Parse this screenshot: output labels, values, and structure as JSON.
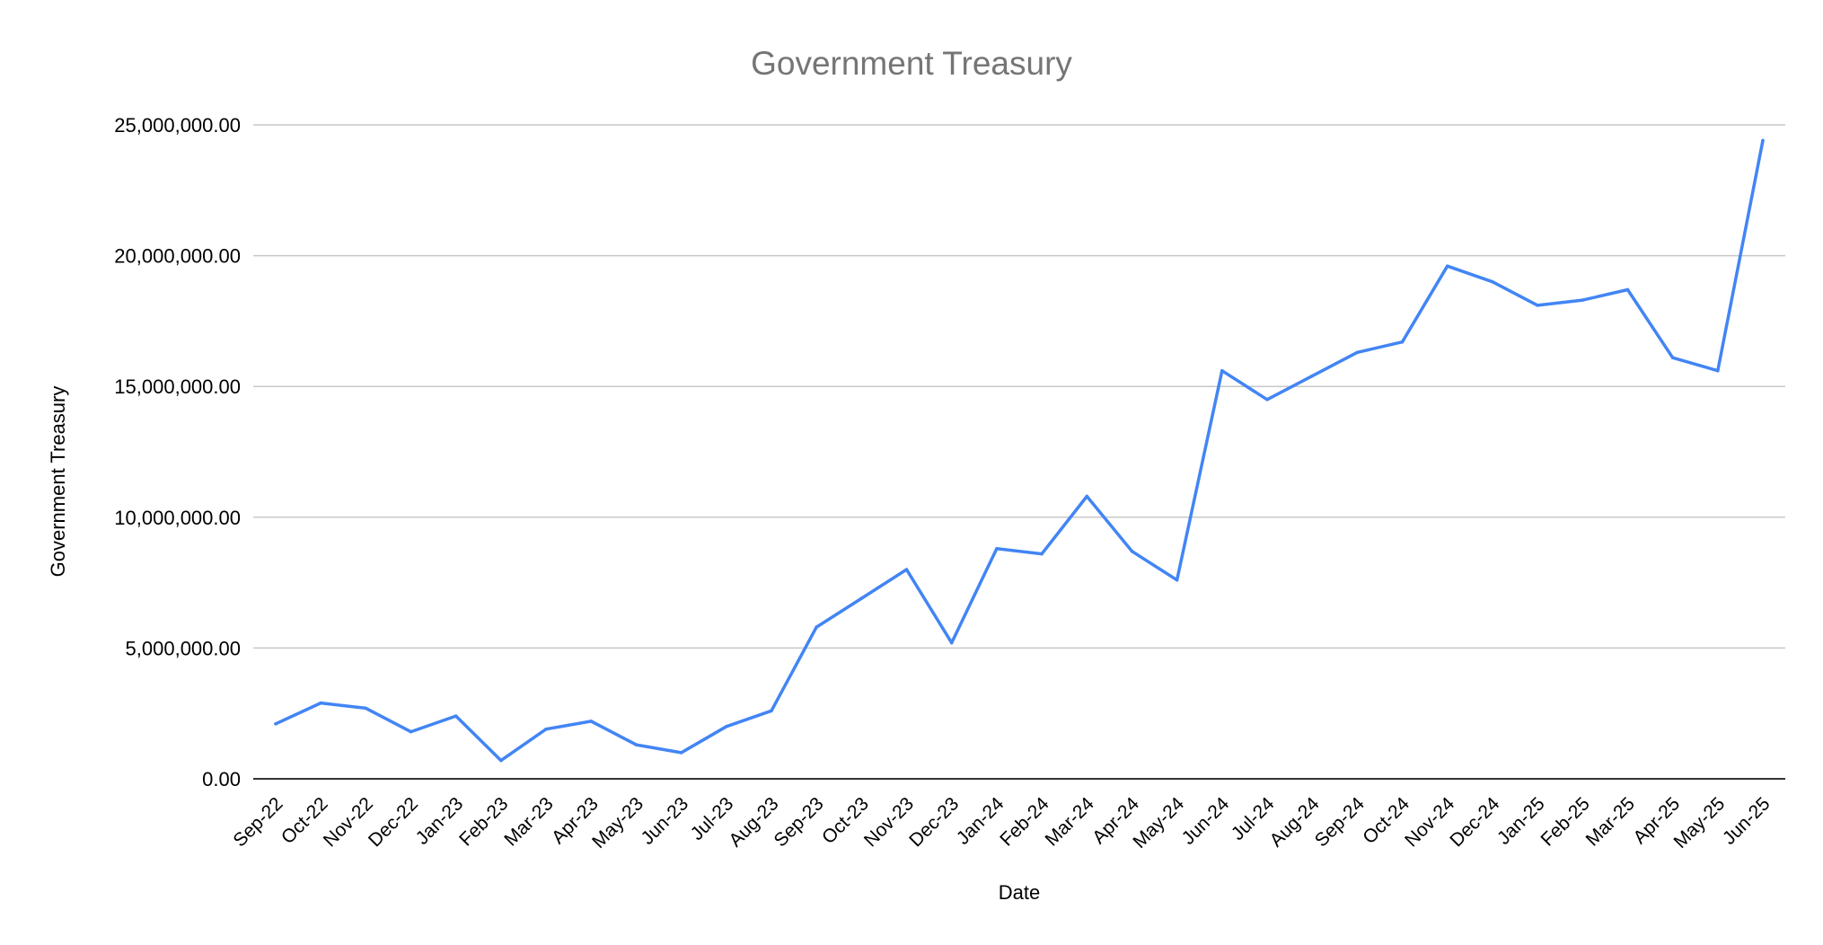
{
  "chart_data": {
    "type": "line",
    "title": "Government Treasury",
    "xlabel": "Date",
    "ylabel": "Government Treasury",
    "ylim": [
      0,
      25000000
    ],
    "yticks": [
      {
        "value": 0,
        "label": "0.00"
      },
      {
        "value": 5000000,
        "label": "5,000,000.00"
      },
      {
        "value": 10000000,
        "label": "10,000,000.00"
      },
      {
        "value": 15000000,
        "label": "15,000,000.00"
      },
      {
        "value": 20000000,
        "label": "20,000,000.00"
      },
      {
        "value": 25000000,
        "label": "25,000,000.00"
      }
    ],
    "grid": true,
    "legend": "none",
    "categories": [
      "Sep-22",
      "Oct-22",
      "Nov-22",
      "Dec-22",
      "Jan-23",
      "Feb-23",
      "Mar-23",
      "Apr-23",
      "May-23",
      "Jun-23",
      "Jul-23",
      "Aug-23",
      "Sep-23",
      "Oct-23",
      "Nov-23",
      "Dec-23",
      "Jan-24",
      "Feb-24",
      "Mar-24",
      "Apr-24",
      "May-24",
      "Jun-24",
      "Jul-24",
      "Aug-24",
      "Sep-24",
      "Oct-24",
      "Nov-24",
      "Dec-24",
      "Jan-25",
      "Feb-25",
      "Mar-25",
      "Apr-25",
      "May-25",
      "Jun-25"
    ],
    "series": [
      {
        "color": "#4285f4",
        "values": [
          2100000,
          2900000,
          2700000,
          1800000,
          2400000,
          700000,
          1900000,
          2200000,
          1300000,
          1000000,
          2000000,
          2600000,
          5800000,
          6900000,
          8000000,
          5200000,
          8800000,
          8600000,
          10800000,
          8700000,
          7600000,
          15600000,
          14500000,
          15400000,
          16300000,
          16700000,
          19600000,
          19000000,
          18100000,
          18300000,
          18700000,
          16100000,
          15600000,
          24400000
        ]
      }
    ]
  }
}
